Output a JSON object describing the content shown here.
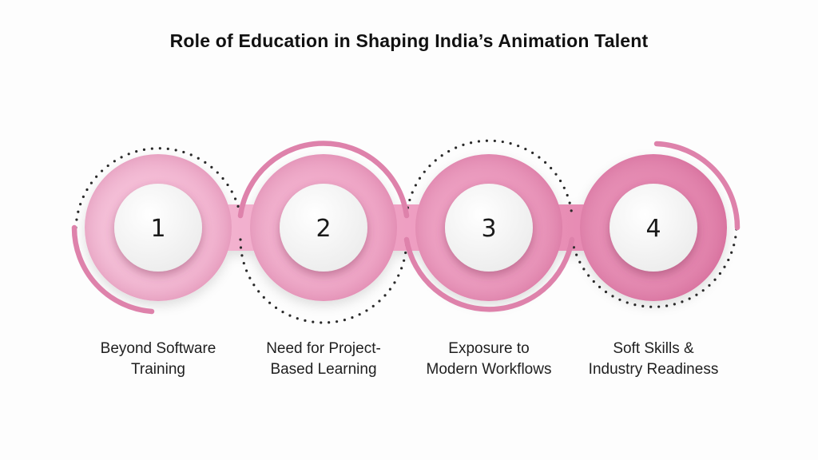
{
  "title": "Role of Education in Shaping India’s Animation Talent",
  "colors": {
    "accent_arc": "#de82ab",
    "dots": "#2a2a2a",
    "band_start": "#f6c2da",
    "band_end": "#e07aa6",
    "node_fill": "#f7f7f7"
  },
  "steps": [
    {
      "number": "1",
      "label_line1": "Beyond Software",
      "label_line2": "Training"
    },
    {
      "number": "2",
      "label_line1": "Need for Project-",
      "label_line2": "Based Learning"
    },
    {
      "number": "3",
      "label_line1": "Exposure to",
      "label_line2": "Modern Workflows"
    },
    {
      "number": "4",
      "label_line1": "Soft Skills &",
      "label_line2": "Industry Readiness"
    }
  ]
}
